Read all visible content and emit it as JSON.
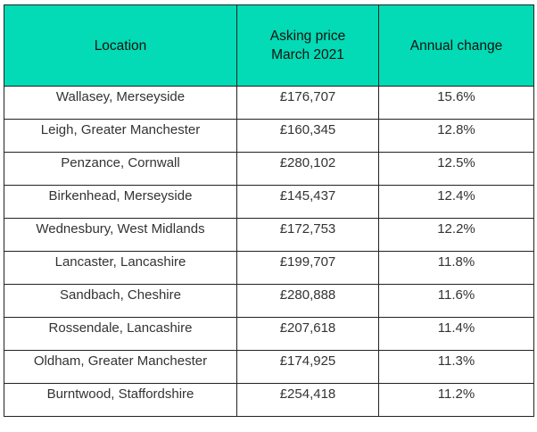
{
  "table": {
    "headers": [
      "Location",
      "Asking price",
      "March 2021",
      "Annual change"
    ],
    "rows": [
      [
        "Wallasey, Merseyside",
        "£176,707",
        "15.6%"
      ],
      [
        "Leigh, Greater Manchester",
        "£160,345",
        "12.8%"
      ],
      [
        "Penzance, Cornwall",
        "£280,102",
        "12.5%"
      ],
      [
        "Birkenhead, Merseyside",
        "£145,437",
        "12.4%"
      ],
      [
        "Wednesbury, West Midlands",
        "£172,753",
        "12.2%"
      ],
      [
        "Lancaster, Lancashire",
        "£199,707",
        "11.8%"
      ],
      [
        "Sandbach, Cheshire",
        "£280,888",
        "11.6%"
      ],
      [
        "Rossendale, Lancashire",
        "£207,618",
        "11.4%"
      ],
      [
        "Oldham, Greater Manchester",
        "£174,925",
        "11.3%"
      ],
      [
        "Burntwood, Staffordshire",
        "£254,418",
        "11.2%"
      ]
    ]
  },
  "colors": {
    "header_bg": "#02dbb5"
  }
}
